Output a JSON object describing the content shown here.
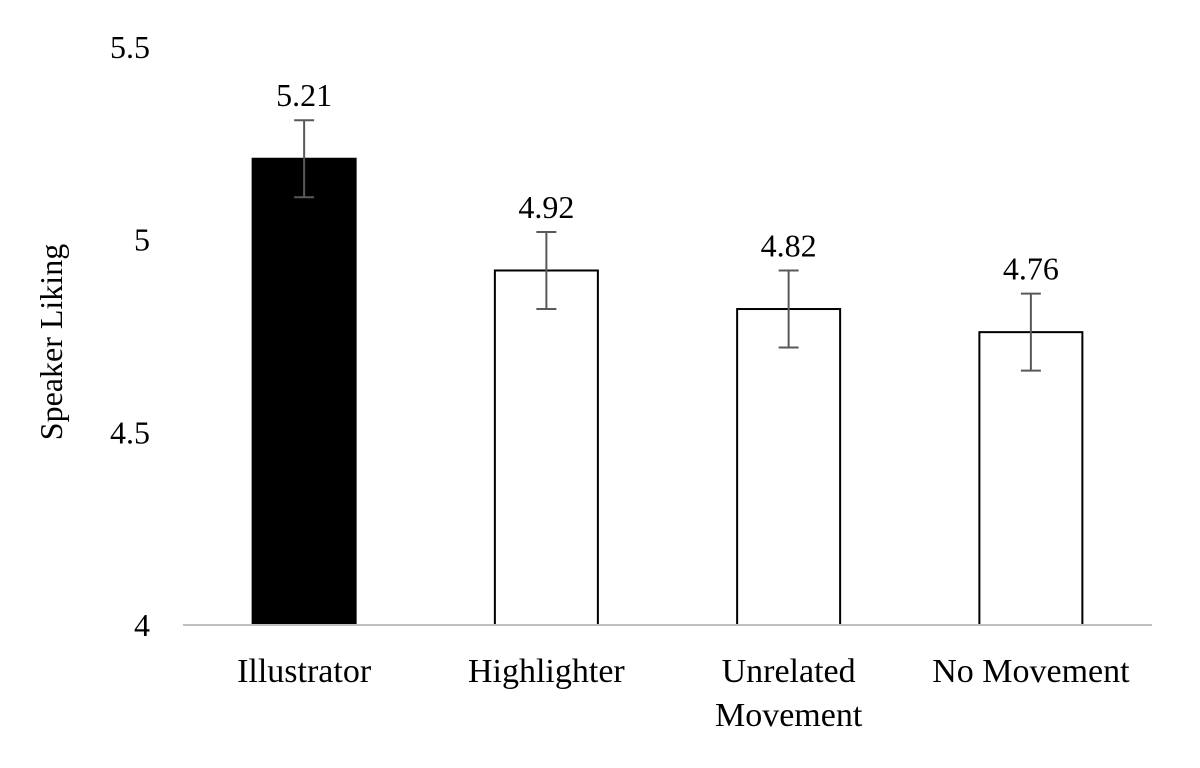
{
  "chart_data": {
    "type": "bar",
    "ylabel": "Speaker Liking",
    "ylim": [
      4,
      5.5
    ],
    "yticks": [
      "4",
      "4.5",
      "5",
      "5.5"
    ],
    "grid": false,
    "legend": "none",
    "categories": [
      {
        "label": [
          "Illustrator"
        ],
        "value": 5.21,
        "value_label": "5.21",
        "error": 0.1,
        "fill": "#000000"
      },
      {
        "label": [
          "Highlighter"
        ],
        "value": 4.92,
        "value_label": "4.92",
        "error": 0.1,
        "fill": "#ffffff"
      },
      {
        "label": [
          "Unrelated",
          "Movement"
        ],
        "value": 4.82,
        "value_label": "4.82",
        "error": 0.1,
        "fill": "#ffffff"
      },
      {
        "label": [
          "No Movement"
        ],
        "value": 4.76,
        "value_label": "4.76",
        "error": 0.1,
        "fill": "#ffffff"
      }
    ],
    "colors": {
      "bar_stroke": "#000000",
      "error_bar": "#595959",
      "axis": "#bfbfbf"
    }
  }
}
